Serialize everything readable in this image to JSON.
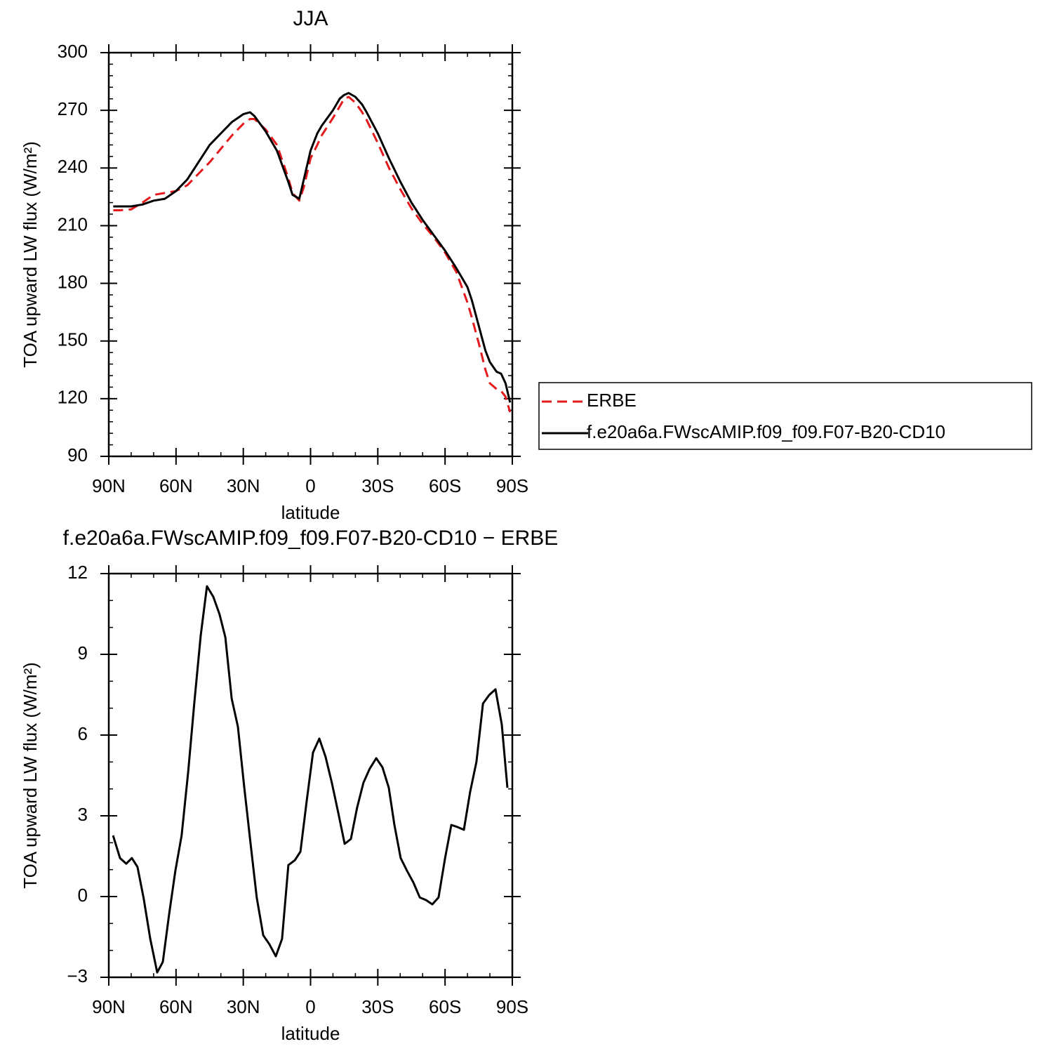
{
  "chart_data": [
    {
      "type": "line",
      "title": "JJA",
      "xlabel": "latitude",
      "ylabel": "TOA upward LW flux (W/m²)",
      "x": [
        88,
        85,
        80,
        75,
        70,
        65,
        60,
        55,
        50,
        45,
        40,
        35,
        30,
        27,
        25,
        20,
        15,
        10,
        8,
        5,
        3,
        0,
        -3,
        -5,
        -10,
        -13,
        -15,
        -17,
        -20,
        -23,
        -25,
        -30,
        -35,
        -40,
        -45,
        -50,
        -55,
        -60,
        -65,
        -70,
        -72,
        -75,
        -78,
        -80,
        -83,
        -85,
        -87,
        -89
      ],
      "series": [
        {
          "name": "ERBE",
          "color": "#e41a1c",
          "style": "dashed",
          "values": [
            218,
            218,
            218.5,
            222,
            226,
            227,
            228,
            231,
            237,
            243,
            250,
            257,
            263,
            265.5,
            265.5,
            260,
            252,
            235,
            227,
            223,
            230,
            245,
            252,
            257,
            266,
            272,
            276,
            277,
            274,
            269,
            265,
            253,
            240,
            229,
            219,
            211,
            204,
            196,
            186,
            170,
            162,
            149,
            135,
            128,
            125,
            124,
            121,
            113
          ]
        },
        {
          "name": "f.e20a6a.FWscAMIP.f09_f09.F07-B20-CD10",
          "color": "#000000",
          "style": "solid",
          "values": [
            220,
            220,
            220,
            221,
            223,
            224,
            228,
            234,
            243,
            252,
            258,
            264,
            268,
            269,
            267,
            259,
            249,
            233,
            226,
            224,
            234,
            249,
            258,
            262,
            270,
            276,
            278,
            279,
            277,
            273,
            269,
            258,
            245,
            233,
            222,
            213,
            205,
            197,
            188,
            178,
            171,
            158,
            145,
            139,
            134,
            133,
            128,
            118
          ]
        }
      ],
      "xlim": [
        90,
        -90
      ],
      "xticks": [
        {
          "value": 90,
          "label": "90N"
        },
        {
          "value": 60,
          "label": "60N"
        },
        {
          "value": 30,
          "label": "30N"
        },
        0,
        {
          "value": -30,
          "label": "30S"
        },
        {
          "value": -60,
          "label": "60S"
        },
        {
          "value": -90,
          "label": "90S"
        }
      ],
      "ylim": [
        90,
        300
      ],
      "yticks": [
        90,
        120,
        150,
        180,
        210,
        240,
        270,
        300
      ],
      "legend": "right"
    },
    {
      "type": "line",
      "title": "f.e20a6a.FWscAMIP.f09_f09.F07-B20-CD10 − ERBE",
      "xlabel": "latitude",
      "ylabel": "TOA upward LW flux (W/m²)",
      "x": [
        88.1,
        85,
        82.2,
        79.7,
        77.2,
        74.4,
        71.5,
        68.4,
        65.9,
        63,
        60.3,
        57.5,
        54.6,
        51.8,
        49,
        46.2,
        43.4,
        40.6,
        38,
        35.2,
        32.4,
        29.6,
        26.8,
        24,
        21.1,
        18.3,
        15.5,
        12.7,
        9.9,
        7,
        4.5,
        1.7,
        -1.1,
        -3.9,
        -6.7,
        -9.5,
        -12.4,
        -15.2,
        -18,
        -20.8,
        -23.6,
        -26.4,
        -29.3,
        -32.1,
        -34.9,
        -37.4,
        -40.2,
        -43,
        -45.9,
        -48.7,
        -51.5,
        -54.3,
        -57.1,
        -60,
        -62.8,
        -65.6,
        -68.4,
        -71.2,
        -74,
        -76.9,
        -79.7,
        -82.5,
        -85.3,
        -87.8
      ],
      "values": [
        2.27,
        1.43,
        1.22,
        1.43,
        1.1,
        -0.08,
        -1.57,
        -2.82,
        -2.43,
        -0.6,
        0.96,
        2.27,
        4.62,
        7.23,
        9.7,
        11.53,
        11.14,
        10.49,
        9.63,
        7.36,
        6.31,
        4.09,
        2.0,
        -0.03,
        -1.44,
        -1.78,
        -2.22,
        -1.57,
        1.17,
        1.35,
        1.67,
        3.57,
        5.35,
        5.87,
        5.19,
        4.23,
        3.1,
        1.96,
        2.14,
        3.31,
        4.23,
        4.75,
        5.14,
        4.8,
        4.04,
        2.66,
        1.43,
        0.96,
        0.52,
        -0.03,
        -0.13,
        -0.29,
        -0.03,
        1.43,
        2.66,
        2.58,
        2.48,
        3.89,
        5.01,
        7.17,
        7.49,
        7.7,
        6.39,
        4.04
      ],
      "color": "#000000",
      "xlim": [
        90,
        -90
      ],
      "xticks": [
        {
          "value": 90,
          "label": "90N"
        },
        {
          "value": 60,
          "label": "60N"
        },
        {
          "value": 30,
          "label": "30N"
        },
        0,
        {
          "value": -30,
          "label": "30S"
        },
        {
          "value": -60,
          "label": "60S"
        },
        {
          "value": -90,
          "label": "90S"
        }
      ],
      "ylim": [
        -3,
        12
      ],
      "yticks": [
        {
          "value": -3,
          "label": "−3"
        },
        0,
        3,
        6,
        9,
        12
      ]
    }
  ]
}
